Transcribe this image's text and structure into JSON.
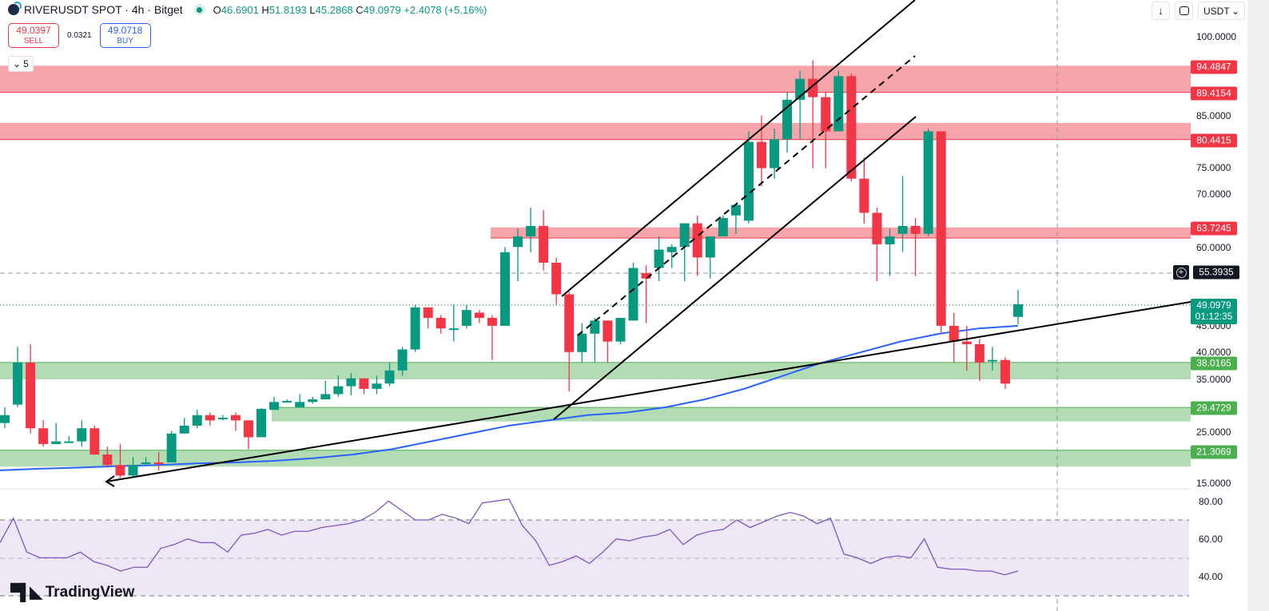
{
  "header": {
    "symbol": "RIVERUSDT SPOT · 4h · Bitget",
    "ohlc": {
      "o_label": "O",
      "o": "46.6901",
      "h_label": "H",
      "h": "51.8193",
      "l_label": "L",
      "l": "45.2868",
      "c_label": "C",
      "c": "49.0979",
      "change": "+2.4078 (+5.16%)"
    }
  },
  "trade": {
    "sell_price": "49.0397",
    "sell_label": "SELL",
    "spread": "0.0321",
    "buy_price": "49.0718",
    "buy_label": "BUY"
  },
  "collapse": {
    "count": "5"
  },
  "toolbar": {
    "arrow_icon": "↓",
    "currency": "USDT"
  },
  "colors": {
    "up": "#089981",
    "down": "#f23645",
    "resistance_zone": "#f7a5ab",
    "support_zone": "#b2ddb4",
    "ma": "#2962ff",
    "rsi": "#7e57c2",
    "rsi_band": "#ede7f6"
  },
  "price_axis": {
    "ticks": [
      "100.0000",
      "85.0000",
      "75.0000",
      "70.0000",
      "60.0000",
      "45.0000",
      "40.0000",
      "35.0000",
      "25.0000",
      "15.0000"
    ]
  },
  "price_tags": {
    "r1": "94.4847",
    "r2": "89.4154",
    "r3": "80.4415",
    "r4": "63.7245",
    "crosshair": "55.3935",
    "last": "49.0979",
    "countdown": "01:12:35",
    "s1": "38.0165",
    "s2": "29.4729",
    "s3": "21.3069"
  },
  "rsi_axis": {
    "ticks": [
      "80.00",
      "60.00",
      "40.00"
    ]
  },
  "branding": {
    "name": "TradingView"
  },
  "chart_data": {
    "type": "candlestick",
    "title": "RIVERUSDT SPOT · 4h · Bitget",
    "ylabel": "USDT",
    "ylim": [
      15,
      100
    ],
    "zones": [
      {
        "type": "resistance",
        "low": 89.4154,
        "high": 94.4847
      },
      {
        "type": "resistance",
        "low": 80.4415,
        "high": 83.6
      },
      {
        "type": "resistance",
        "low": 61.7,
        "high": 63.7245
      },
      {
        "type": "support",
        "low": 34.8,
        "high": 38.0165
      },
      {
        "type": "support",
        "low": 26.8,
        "high": 29.4729
      },
      {
        "type": "support",
        "low": 18.2,
        "high": 21.3069
      }
    ],
    "candles": [
      [
        26.5,
        28.0,
        25.5,
        29.5
      ],
      [
        30.0,
        38.0,
        29.5,
        41.0
      ],
      [
        38.0,
        25.5,
        24.5,
        41.5
      ],
      [
        25.5,
        22.5,
        22.0,
        27.0
      ],
      [
        22.5,
        23.0,
        22.5,
        26.5
      ],
      [
        23.0,
        23.0,
        23.0,
        24.0
      ],
      [
        23.0,
        25.5,
        22.0,
        27.0
      ],
      [
        25.5,
        20.5,
        20.5,
        26.0
      ],
      [
        20.5,
        18.5,
        18.0,
        22.0
      ],
      [
        18.5,
        16.5,
        16.0,
        22.5
      ],
      [
        16.5,
        18.5,
        16.0,
        20.0
      ],
      [
        18.8,
        19.0,
        18.5,
        20.0
      ],
      [
        19.0,
        18.8,
        17.5,
        21.0
      ],
      [
        19.0,
        24.5,
        19.0,
        25.0
      ],
      [
        24.5,
        26.0,
        25.0,
        27.5
      ],
      [
        26.0,
        28.0,
        25.5,
        29.0
      ],
      [
        28.0,
        27.0,
        26.0,
        28.5
      ],
      [
        27.5,
        27.5,
        27.0,
        28.0
      ],
      [
        28.0,
        27.0,
        25.0,
        28.5
      ],
      [
        27.0,
        23.8,
        21.5,
        27.0
      ],
      [
        23.8,
        29.2,
        23.8,
        29.3
      ],
      [
        29.0,
        30.5,
        29.5,
        31.5
      ],
      [
        30.5,
        30.7,
        30.5,
        31.0
      ],
      [
        29.5,
        30.5,
        29.5,
        32.0
      ],
      [
        30.5,
        31.0,
        30.2,
        31.5
      ],
      [
        31.0,
        32.0,
        31.0,
        34.5
      ],
      [
        32.0,
        33.5,
        31.5,
        35.5
      ],
      [
        33.5,
        35.0,
        31.8,
        36.0
      ],
      [
        35.0,
        33.0,
        32.0,
        35.0
      ],
      [
        33.0,
        34.0,
        32.0,
        35.5
      ],
      [
        34.0,
        36.5,
        33.5,
        38.0
      ],
      [
        36.5,
        40.5,
        35.5,
        41.0
      ],
      [
        40.5,
        48.5,
        40.0,
        49.0
      ],
      [
        48.5,
        46.5,
        44.5,
        48.5
      ],
      [
        46.5,
        44.5,
        43.5,
        47.0
      ],
      [
        44.5,
        44.5,
        42.0,
        49.0
      ],
      [
        45.0,
        48.0,
        44.5,
        49.0
      ],
      [
        47.5,
        46.5,
        45.5,
        48.0
      ],
      [
        46.5,
        45.0,
        38.5,
        47.0
      ],
      [
        45.0,
        59.0,
        45.0,
        60.0
      ],
      [
        60.0,
        62.0,
        53.5,
        63.5
      ],
      [
        62.0,
        64.0,
        59.0,
        67.5
      ],
      [
        64.0,
        57.0,
        55.5,
        67.0
      ],
      [
        57.0,
        51.0,
        49.0,
        58.0
      ],
      [
        51.0,
        40.0,
        32.5,
        51.5
      ],
      [
        40.0,
        43.5,
        38.0,
        45.5
      ],
      [
        43.5,
        46.0,
        38.0,
        46.5
      ],
      [
        46.0,
        42.0,
        38.0,
        46.0
      ],
      [
        42.0,
        46.5,
        41.5,
        46.5
      ],
      [
        46.0,
        56.0,
        46.0,
        57.0
      ],
      [
        55.0,
        54.0,
        45.5,
        56.5
      ],
      [
        56.0,
        59.5,
        53.5,
        62.0
      ],
      [
        59.0,
        60.0,
        56.0,
        60.5
      ],
      [
        60.0,
        64.5,
        53.5,
        64.5
      ],
      [
        64.5,
        58.0,
        54.5,
        66.0
      ],
      [
        58.0,
        62.0,
        54.0,
        62.0
      ],
      [
        62.0,
        65.5,
        62.0,
        66.0
      ],
      [
        66.0,
        68.0,
        62.5,
        68.0
      ],
      [
        65.0,
        80.0,
        64.5,
        82.0
      ],
      [
        80.0,
        75.0,
        71.5,
        85.0
      ],
      [
        75.0,
        80.5,
        73.0,
        82.5
      ],
      [
        80.5,
        88.0,
        78.0,
        89.5
      ],
      [
        88.0,
        92.0,
        80.5,
        93.5
      ],
      [
        92.0,
        88.5,
        75.0,
        95.5
      ],
      [
        88.5,
        82.0,
        75.0,
        89.5
      ],
      [
        82.0,
        92.5,
        82.0,
        93.5
      ],
      [
        92.5,
        73.0,
        72.5,
        93.0
      ],
      [
        73.0,
        66.5,
        64.5,
        77.0
      ],
      [
        66.5,
        60.5,
        53.5,
        67.5
      ],
      [
        60.5,
        62.0,
        54.5,
        63.5
      ],
      [
        62.5,
        64.0,
        59.0,
        73.5
      ],
      [
        64.0,
        62.5,
        54.5,
        65.5
      ],
      [
        62.5,
        82.0,
        62.0,
        82.5
      ],
      [
        82.0,
        45.0,
        43.5,
        82.0
      ],
      [
        45.0,
        42.0,
        38.0,
        47.5
      ],
      [
        42.0,
        41.5,
        36.5,
        45.0
      ],
      [
        41.5,
        38.0,
        34.5,
        42.5
      ],
      [
        38.5,
        38.5,
        36.5,
        41.0
      ],
      [
        38.5,
        34.0,
        33.0,
        39.0
      ],
      [
        46.69,
        49.1,
        45.29,
        51.82
      ]
    ],
    "ma_series": [
      17.5,
      17.8,
      18.0,
      18.3,
      18.5,
      18.8,
      19.0,
      19.3,
      19.8,
      20.5,
      21.5,
      23.0,
      24.5,
      26.0,
      27.0,
      28.0,
      28.5,
      29.5,
      31.0,
      33.0,
      35.5,
      38.0,
      40.0,
      42.0,
      43.5,
      44.5,
      45.0
    ],
    "rsi": {
      "series": [
        58,
        71,
        53,
        50,
        50,
        50,
        53,
        48,
        46,
        43,
        45,
        45,
        55,
        57,
        60,
        58,
        58,
        53,
        62,
        63,
        65,
        62,
        64,
        64,
        66,
        67,
        68,
        70,
        74,
        80,
        75,
        70,
        70,
        73,
        71,
        68,
        79,
        80,
        81,
        67,
        59,
        46,
        48,
        51,
        47,
        53,
        60,
        59,
        61,
        62,
        65,
        57,
        62,
        64,
        65,
        70,
        66,
        69,
        72,
        74,
        72,
        68,
        71,
        52,
        50,
        47,
        50,
        51,
        50,
        60,
        45,
        44,
        44,
        43,
        43,
        41,
        43
      ],
      "overbought": 70,
      "oversold": 30,
      "mid": 50,
      "ylim": [
        30,
        85
      ]
    },
    "trendlines": [
      "ascending channel upper",
      "ascending channel mid (dashed)",
      "ascending channel lower",
      "long-term support from 16.5 to 49"
    ]
  }
}
